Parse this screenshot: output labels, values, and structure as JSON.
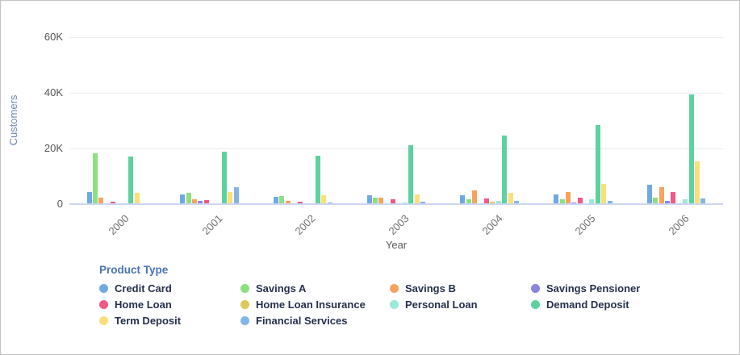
{
  "chart": {
    "y_axis_title": "Customers",
    "x_axis_title": "Year",
    "y_ticks": [
      {
        "label": "60K",
        "value": 60
      },
      {
        "label": "40K",
        "value": 40
      },
      {
        "label": "20K",
        "value": 20
      },
      {
        "label": "0",
        "value": 0
      }
    ]
  },
  "legend": {
    "title": "Product Type"
  },
  "chart_data": {
    "type": "bar",
    "title": "",
    "xlabel": "Year",
    "ylabel": "Customers",
    "unit": "thousands of customers",
    "ylim": [
      0,
      60000
    ],
    "grid": "horizontal",
    "legend_position": "bottom",
    "categories": [
      "2000",
      "2001",
      "2002",
      "2003",
      "2004",
      "2005",
      "2006"
    ],
    "series": [
      {
        "name": "Credit Card",
        "color": "#6fa9e1",
        "values_thousands": [
          4.0,
          3.3,
          2.3,
          2.9,
          2.8,
          3.3,
          6.8
        ]
      },
      {
        "name": "Savings A",
        "color": "#8de07f",
        "values_thousands": [
          18.1,
          3.8,
          2.7,
          2.1,
          1.5,
          1.5,
          1.9
        ]
      },
      {
        "name": "Savings B",
        "color": "#f5a35f",
        "values_thousands": [
          2.1,
          1.4,
          1.0,
          2.1,
          4.7,
          4.1,
          5.9
        ]
      },
      {
        "name": "Savings Pensioner",
        "color": "#8b84dd",
        "values_thousands": [
          0,
          0.8,
          0,
          0,
          0,
          0.3,
          0.8
        ]
      },
      {
        "name": "Home Loan",
        "color": "#ee5a85",
        "values_thousands": [
          0.6,
          1.1,
          0.6,
          1.4,
          1.7,
          2.1,
          4.1
        ]
      },
      {
        "name": "Home Loan Insurance",
        "color": "#ddc958",
        "values_thousands": [
          0,
          0,
          0,
          0,
          0.6,
          0,
          0
        ]
      },
      {
        "name": "Personal Loan",
        "color": "#9ce8da",
        "values_thousands": [
          0,
          0,
          0,
          0.4,
          0.8,
          1.5,
          1.6
        ]
      },
      {
        "name": "Demand Deposit",
        "color": "#5cd2a0",
        "values_thousands": [
          17.0,
          18.7,
          17.1,
          20.8,
          24.4,
          28.2,
          39.1
        ]
      },
      {
        "name": "Term Deposit",
        "color": "#fcdf79",
        "values_thousands": [
          3.8,
          4.1,
          2.9,
          3.2,
          3.9,
          7.1,
          15.2
        ]
      },
      {
        "name": "Financial Services",
        "color": "#83b5e8",
        "values_thousands": [
          0,
          5.9,
          0.4,
          0.6,
          0.9,
          1.0,
          1.7
        ]
      }
    ]
  }
}
